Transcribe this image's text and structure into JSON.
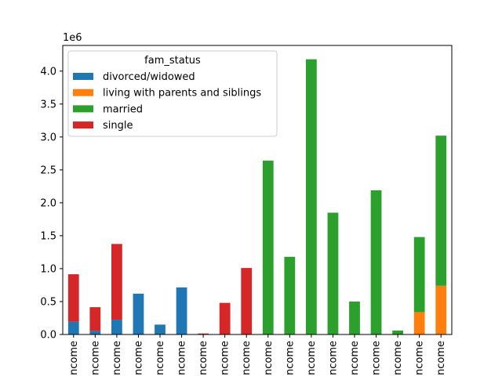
{
  "chart_data": {
    "type": "bar",
    "stacked": true,
    "title": "",
    "xlabel": "",
    "ylabel": "",
    "ylim": [
      0,
      4390000
    ],
    "y_offset_label": "1e6",
    "y_ticks": [
      0.0,
      0.5,
      1.0,
      1.5,
      2.0,
      2.5,
      3.0,
      3.5,
      4.0
    ],
    "y_tick_labels": [
      "0.0",
      "0.5",
      "1.0",
      "1.5",
      "2.0",
      "2.5",
      "3.0",
      "3.5",
      "4.0"
    ],
    "categories": [
      "ncome",
      "ncome",
      "ncome",
      "ncome",
      "ncome",
      "ncome",
      "ncome",
      "ncome",
      "ncome",
      "ncome",
      "ncome",
      "ncome",
      "ncome",
      "ncome",
      "ncome",
      "ncome",
      "ncome",
      "ncome"
    ],
    "legend": {
      "title": "fam_status",
      "position": "upper-left"
    },
    "series": [
      {
        "name": "divorced/widowed",
        "color": "#1f77b4",
        "values": [
          195000,
          55000,
          225000,
          620000,
          150000,
          715000,
          0,
          0,
          0,
          0,
          0,
          0,
          0,
          0,
          0,
          0,
          0,
          0
        ]
      },
      {
        "name": "living with parents and siblings",
        "color": "#ff7f0e",
        "values": [
          0,
          0,
          0,
          0,
          0,
          0,
          0,
          0,
          0,
          0,
          0,
          0,
          0,
          0,
          0,
          0,
          340000,
          740000
        ]
      },
      {
        "name": "married",
        "color": "#2ca02c",
        "values": [
          0,
          0,
          0,
          0,
          0,
          0,
          0,
          0,
          0,
          2640000,
          1180000,
          4180000,
          1850000,
          500000,
          2190000,
          60000,
          1140000,
          2280000
        ]
      },
      {
        "name": "single",
        "color": "#d62728",
        "values": [
          720000,
          360000,
          1150000,
          0,
          0,
          0,
          15000,
          480000,
          1010000,
          0,
          0,
          0,
          0,
          0,
          0,
          0,
          0,
          0
        ]
      }
    ]
  }
}
